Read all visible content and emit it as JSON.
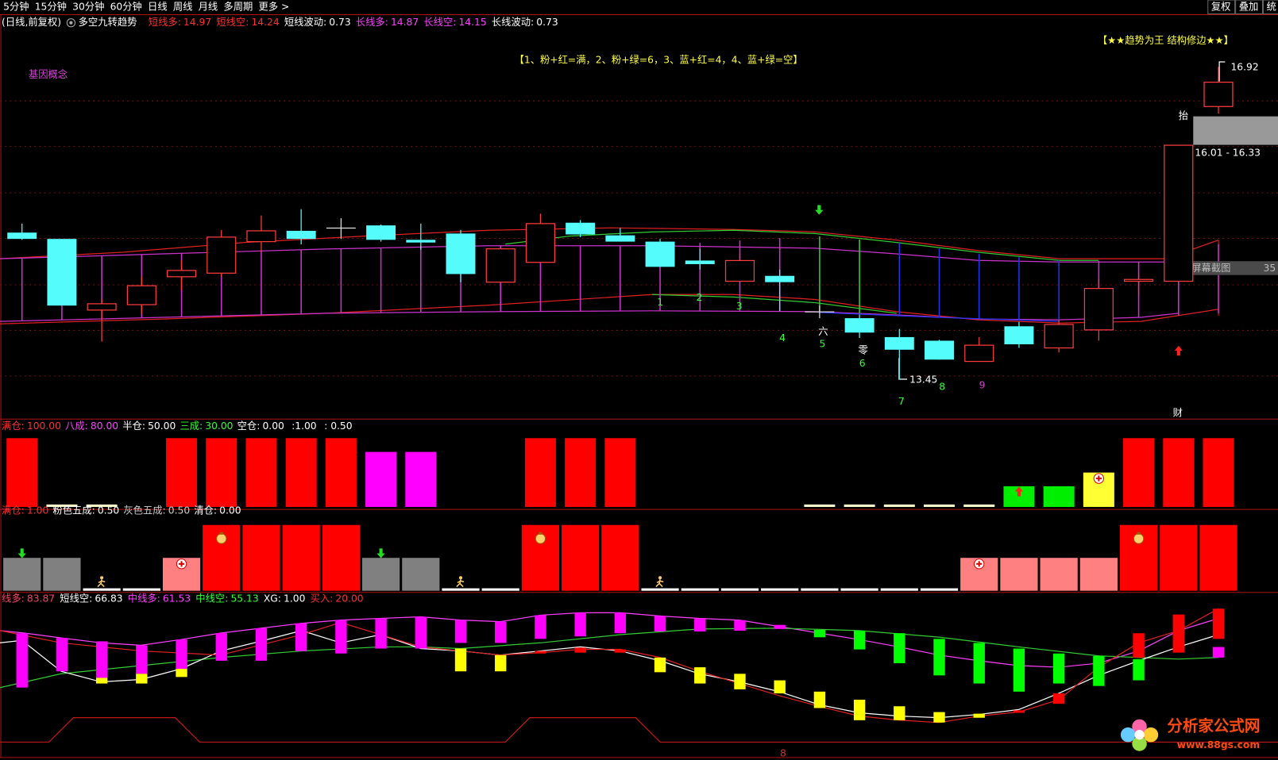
{
  "toolbar": {
    "periods": [
      "5分钟",
      "15分钟",
      "30分钟",
      "60分钟",
      "日线",
      "周线",
      "月线",
      "多周期",
      "更多 >"
    ],
    "actions": [
      "复权",
      "叠加",
      "统"
    ]
  },
  "header": {
    "mode": "(日线,前复权)",
    "indicator": "多空九转趋势"
  },
  "chart_data": [
    {
      "type": "candlestick",
      "ylim": [
        13.01,
        17.5
      ],
      "legend": [
        {
          "name": "短线多:",
          "value": "14.97",
          "color": "#ff3030"
        },
        {
          "name": "短线空:",
          "value": "14.24",
          "color": "#ff3030"
        },
        {
          "name": "短线波动:",
          "value": "0.73",
          "color": "#ffffff"
        },
        {
          "name": "长线多:",
          "value": "14.87",
          "color": "#ff40ff"
        },
        {
          "name": "长线空:",
          "value": "14.15",
          "color": "#ff40ff"
        },
        {
          "name": "长线波动:",
          "value": "0.73",
          "color": "#ffffff"
        }
      ],
      "colors": {
        "up": "#ff3c3c",
        "down": "#54fcfc",
        "flat": "#e0e0e0"
      },
      "open": [
        15.08,
        15.01,
        14.22,
        14.28,
        14.59,
        14.63,
        14.98,
        15.1,
        15.13,
        15.16,
        15.0,
        15.07,
        14.53,
        14.75,
        15.19,
        15.05,
        14.98,
        14.77,
        14.54,
        14.6,
        14.2,
        14.13,
        13.92,
        13.88,
        13.65,
        14.04,
        13.8,
        14.0,
        14.54,
        14.54,
        16.48
      ],
      "high": [
        15.18,
        15.01,
        14.34,
        14.59,
        14.77,
        15.11,
        15.27,
        15.34,
        15.24,
        15.17,
        15.18,
        15.11,
        14.9,
        15.29,
        15.22,
        15.13,
        15.01,
        14.9,
        14.85,
        14.67,
        14.27,
        14.17,
        14.01,
        13.89,
        13.92,
        14.09,
        14.11,
        14.57,
        14.63,
        16.05,
        16.92
      ],
      "low": [
        15.0,
        14.27,
        13.87,
        14.18,
        14.44,
        14.59,
        14.86,
        14.95,
        15.01,
        14.98,
        14.89,
        14.53,
        14.53,
        14.75,
        15.03,
        14.98,
        14.7,
        14.67,
        14.54,
        14.21,
        14.13,
        13.91,
        13.45,
        13.67,
        13.65,
        13.8,
        13.75,
        13.88,
        14.38,
        14.54,
        16.4
      ],
      "close": [
        15.01,
        14.27,
        14.29,
        14.49,
        14.66,
        15.03,
        15.1,
        15.01,
        15.13,
        15.0,
        14.97,
        14.62,
        14.9,
        15.18,
        15.06,
        14.98,
        14.7,
        14.73,
        14.77,
        14.53,
        14.2,
        13.97,
        13.78,
        13.67,
        13.83,
        13.84,
        14.06,
        14.46,
        14.56,
        16.05,
        16.75
      ],
      "annotations": {
        "concept": "基因概念",
        "rule": "【1、粉+红=满，2、粉+绿=6，3、蓝+红=4，4、蓝+绿=空】",
        "motto": "【★★趋势为王 结构修边★★】",
        "high_label": "16.92",
        "low_label": "13.45",
        "range_label": "16.01 - 16.33",
        "tai": "抬",
        "screenshot": "屏幕截图",
        "screenshot_num": "35",
        "cai": "财",
        "liu": "六",
        "ling": "零"
      },
      "counts": [
        {
          "text": "1",
          "color": "#33ff33"
        },
        {
          "text": "2",
          "color": "#33ff33"
        },
        {
          "text": "3",
          "color": "#33ff33"
        },
        {
          "text": "4",
          "color": "#33ff33"
        },
        {
          "text": "5",
          "color": "#33ff33"
        },
        {
          "text": "6",
          "color": "#33ff33"
        },
        {
          "text": "7",
          "color": "#33ff33"
        },
        {
          "text": "8",
          "color": "#33ff33"
        },
        {
          "text": "9",
          "color": "#cc44cc"
        }
      ]
    },
    {
      "type": "bar",
      "ylim": [
        0,
        110
      ],
      "legend": [
        {
          "name": "满仓:",
          "value": "100.00",
          "color": "#ff3030"
        },
        {
          "name": "八成:",
          "value": "80.00",
          "color": "#ff40ff"
        },
        {
          "name": "半仓:",
          "value": "50.00",
          "color": "#ffffff"
        },
        {
          "name": "三成:",
          "value": "30.00",
          "color": "#33ff33"
        },
        {
          "name": "空仓:",
          "value": "0.00",
          "color": "#ffffff"
        }
      ],
      "extra": [
        ":1.00",
        ": 0.50"
      ],
      "values": [
        100,
        3,
        3,
        null,
        100,
        100,
        100,
        100,
        100,
        80,
        80,
        null,
        null,
        100,
        100,
        100,
        null,
        null,
        null,
        null,
        3,
        3,
        3,
        3,
        3,
        30,
        30,
        50,
        100,
        100,
        100
      ],
      "colors": [
        "#ff0000",
        "#ffffcc",
        "#ffffcc",
        null,
        "#ff0000",
        "#ff0000",
        "#ff0000",
        "#ff0000",
        "#ff0000",
        "#ff00ff",
        "#ff00ff",
        null,
        null,
        "#ff0000",
        "#ff0000",
        "#ff0000",
        null,
        null,
        null,
        null,
        "#ffffcc",
        "#ffffcc",
        "#ffffcc",
        "#ffffcc",
        "#ffffcc",
        "#00ee00",
        "#00ee00",
        "#ffff33",
        "#ff0000",
        "#ff0000",
        "#ff0000"
      ]
    },
    {
      "type": "bar",
      "ylim": [
        0,
        1.2
      ],
      "legend": [
        {
          "name": "满仓:",
          "value": "1.00",
          "color": "#ff3030"
        },
        {
          "name": "粉色五成:",
          "value": "0.50",
          "color": "#ffffff"
        },
        {
          "name": "灰色五成:",
          "value": "0.50",
          "color": "#cccccc"
        },
        {
          "name": "清仓:",
          "value": "0.00",
          "color": "#ffffff"
        }
      ],
      "values": [
        0.5,
        0.5,
        0,
        0,
        0.5,
        1,
        1,
        1,
        1,
        0.5,
        0.5,
        0,
        0,
        1,
        1,
        1,
        0,
        0,
        0,
        0,
        0,
        0,
        0,
        0,
        0.5,
        0.5,
        0.5,
        0.5,
        1,
        1,
        1
      ],
      "colors": [
        "#808080",
        "#808080",
        "#ffffff",
        "#ffffff",
        "#ff8080",
        "#ff0000",
        "#ff0000",
        "#ff0000",
        "#ff0000",
        "#808080",
        "#808080",
        "#ffffff",
        "#ffffff",
        "#ff0000",
        "#ff0000",
        "#ff0000",
        "#ffffff",
        "#ffffff",
        "#ffffff",
        "#ffffff",
        "#ffffff",
        "#ffffff",
        "#ffffff",
        "#ffffff",
        "#ff8080",
        "#ff8080",
        "#ff8080",
        "#ff8080",
        "#ff0000",
        "#ff0000",
        "#ff0000"
      ]
    },
    {
      "type": "range-bar",
      "ylim": [
        0,
        87.6
      ],
      "legend": [
        {
          "name": "线多:",
          "value": "83.87",
          "color": "#ff4060"
        },
        {
          "name": "短线空:",
          "value": "66.83",
          "color": "#ffffff"
        },
        {
          "name": "中线多:",
          "value": "61.53",
          "color": "#ff40ff"
        },
        {
          "name": "中线空:",
          "value": "55.13",
          "color": "#33ff33"
        },
        {
          "name": "XG:",
          "value": "1.00",
          "color": "#ffffff"
        },
        {
          "name": "买入:",
          "value": "20.00",
          "color": "#ff3030"
        }
      ],
      "bars": [
        {
          "range": [
            70.0,
            39.2
          ],
          "color": "#ff00ff"
        },
        {
          "range": [
            67.3,
            48.4
          ],
          "color": "#ff00ff"
        },
        {
          "range": [
            65.4,
            44.7
          ],
          "color": "#ff00ff"
        },
        {
          "range": [
            63.1,
            47.0
          ],
          "color": "#ff00ff"
        },
        {
          "range": [
            66.4,
            49.8
          ],
          "color": "#ff00ff"
        },
        {
          "range": [
            70.0,
            54.4
          ],
          "color": "#ff00ff"
        },
        {
          "range": [
            72.8,
            54.4
          ],
          "color": "#ff00ff"
        },
        {
          "range": [
            75.6,
            59.9
          ],
          "color": "#ff00ff"
        },
        {
          "range": [
            77.4,
            58.5
          ],
          "color": "#ff00ff"
        },
        {
          "range": [
            78.3,
            61.3
          ],
          "color": "#ff00ff"
        },
        {
          "range": [
            79.3,
            61.3
          ],
          "color": "#ff00ff"
        },
        {
          "range": [
            77.4,
            64.5
          ],
          "color": "#ff00ff"
        },
        {
          "range": [
            76.5,
            64.5
          ],
          "color": "#ff00ff"
        },
        {
          "range": [
            80.2,
            66.8
          ],
          "color": "#ff00ff"
        },
        {
          "range": [
            81.6,
            68.2
          ],
          "color": "#ff00ff"
        },
        {
          "range": [
            81.6,
            70.0
          ],
          "color": "#ff00ff"
        },
        {
          "range": [
            79.7,
            71.0
          ],
          "color": "#ff00ff"
        },
        {
          "range": [
            78.3,
            71.0
          ],
          "color": "#ff00ff"
        },
        {
          "range": [
            77.4,
            71.4
          ],
          "color": "#ff00ff"
        },
        {
          "range": [
            74.7,
            72.4
          ],
          "color": "#ff00ff"
        },
        {
          "range": [
            71.9,
            67.7
          ],
          "color": "#00ff00"
        },
        {
          "range": [
            71.4,
            60.8
          ],
          "color": "#00ff00"
        },
        {
          "range": [
            70.0,
            53.0
          ],
          "color": "#00ff00"
        },
        {
          "range": [
            66.8,
            46.1
          ],
          "color": "#00ff00"
        },
        {
          "range": [
            64.5,
            41.5
          ],
          "color": "#00ff00"
        },
        {
          "range": [
            61.3,
            36.9
          ],
          "color": "#00ff00"
        },
        {
          "range": [
            58.5,
            41.5
          ],
          "color": "#00ff00"
        },
        {
          "range": [
            57.1,
            40.1
          ],
          "color": "#00ff00"
        },
        {
          "range": [
            55.3,
            43.3
          ],
          "color": "#00ff00"
        },
        {
          "range": [
            80.6,
            59.0
          ],
          "color": "#ff0000"
        },
        {
          "range": [
            83.9,
            66.8
          ],
          "color": "#ff0000"
        }
      ],
      "bars2": [
        null,
        null,
        {
          "range": [
            44.7,
            41.5
          ],
          "color": "#ffff00"
        },
        {
          "range": [
            47.0,
            41.5
          ],
          "color": "#ffff00"
        },
        {
          "range": [
            49.8,
            45.2
          ],
          "color": "#ffff00"
        },
        null,
        null,
        null,
        null,
        null,
        null,
        {
          "range": [
            61.3,
            48.4
          ],
          "color": "#ffff00"
        },
        {
          "range": [
            57.6,
            48.4
          ],
          "color": "#ffff00"
        },
        {
          "range": [
            59.9,
            58.5
          ],
          "color": "#ff0000"
        },
        {
          "range": [
            61.8,
            59.0
          ],
          "color": "#ff0000"
        },
        {
          "range": [
            60.8,
            59.0
          ],
          "color": "#ff0000"
        },
        {
          "range": [
            56.2,
            47.9
          ],
          "color": "#ffff00"
        },
        {
          "range": [
            50.7,
            41.5
          ],
          "color": "#ffff00"
        },
        {
          "range": [
            47.0,
            38.2
          ],
          "color": "#ffff00"
        },
        {
          "range": [
            43.3,
            35.9
          ],
          "color": "#ffff00"
        },
        {
          "range": [
            36.9,
            27.6
          ],
          "color": "#ffff00"
        },
        {
          "range": [
            32.3,
            20.7
          ],
          "color": "#ffff00"
        },
        {
          "range": [
            28.6,
            20.7
          ],
          "color": "#ffff00"
        },
        {
          "range": [
            25.3,
            19.4
          ],
          "color": "#ffff00"
        },
        {
          "range": [
            24.4,
            22.1
          ],
          "color": "#ffff00"
        },
        {
          "range": [
            26.3,
            24.9
          ],
          "color": "#ff0000"
        },
        {
          "range": [
            35.9,
            30.0
          ],
          "color": "#ff0000"
        },
        null,
        {
          "range": [
            70.0,
            56.2
          ],
          "color": "#ff0000"
        },
        null,
        {
          "range": [
            62.2,
            56.2
          ],
          "color": "#ff00ff"
        }
      ],
      "bottom_label": "8"
    }
  ],
  "watermark": {
    "name": "分析家公式网",
    "url": "www.88gs.com"
  }
}
